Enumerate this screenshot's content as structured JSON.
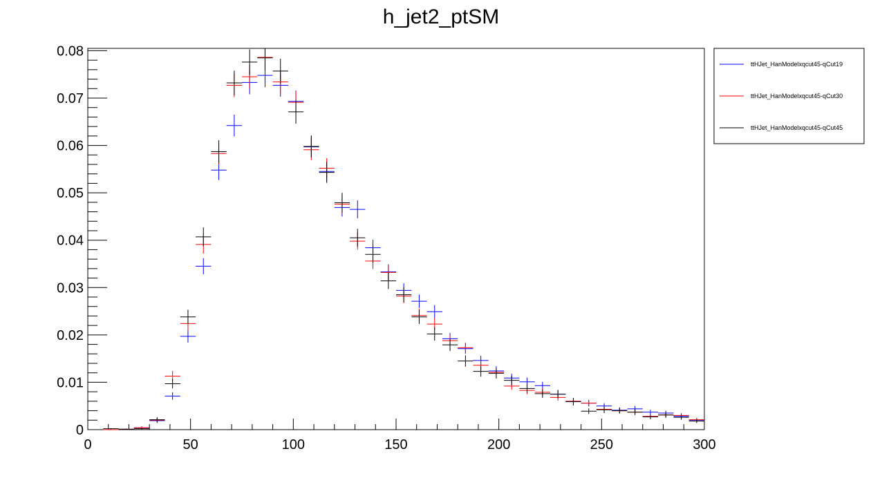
{
  "chart_data": {
    "type": "scatter",
    "title": "h_jet2_ptSM",
    "xlabel": "",
    "ylabel": "",
    "xlim": [
      0,
      300
    ],
    "ylim": [
      0,
      0.0805
    ],
    "x_ticks": [
      "0",
      "50",
      "100",
      "150",
      "200",
      "250",
      "300"
    ],
    "y_ticks": [
      "0",
      "0.01",
      "0.02",
      "0.03",
      "0.04",
      "0.05",
      "0.06",
      "0.07",
      "0.08"
    ],
    "legend_position": "top-right, outside plot",
    "bin_width": 7.5,
    "x": [
      11.25,
      18.75,
      26.25,
      33.75,
      41.25,
      48.75,
      56.25,
      63.75,
      71.25,
      78.75,
      86.25,
      93.75,
      101.25,
      108.75,
      116.25,
      123.75,
      131.25,
      138.75,
      146.25,
      153.75,
      161.25,
      168.75,
      176.25,
      183.75,
      191.25,
      198.75,
      206.25,
      213.75,
      221.25,
      228.75,
      236.25,
      243.75,
      251.25,
      258.75,
      266.25,
      273.75,
      281.25,
      288.75,
      296.25
    ],
    "series": [
      {
        "name": "ttHJet_HanModelxqcut45-qCut19",
        "color": "#0000ff",
        "values": [
          0.0,
          0.0001,
          0.0004,
          0.0019,
          0.0071,
          0.0197,
          0.0345,
          0.0548,
          0.0642,
          0.0733,
          0.0748,
          0.0727,
          0.0693,
          0.0597,
          0.0545,
          0.0469,
          0.0465,
          0.0384,
          0.0333,
          0.0294,
          0.0271,
          0.0249,
          0.0192,
          0.0171,
          0.0146,
          0.0124,
          0.0109,
          0.0101,
          0.0093,
          0.0075,
          0.006,
          0.0056,
          0.005,
          0.0041,
          0.0044,
          0.0037,
          0.0035,
          0.0028,
          0.002
        ],
        "errors": [
          0.0,
          0.0001,
          0.0003,
          0.0005,
          0.0008,
          0.0013,
          0.0017,
          0.0021,
          0.0023,
          0.0025,
          0.0025,
          0.0024,
          0.0023,
          0.0022,
          0.0021,
          0.0019,
          0.0019,
          0.0017,
          0.0016,
          0.0015,
          0.0014,
          0.0014,
          0.0012,
          0.0011,
          0.001,
          0.001,
          0.0009,
          0.0009,
          0.0008,
          0.0008,
          0.0007,
          0.0007,
          0.0006,
          0.0006,
          0.0006,
          0.0005,
          0.0005,
          0.0005,
          0.0004
        ]
      },
      {
        "name": "ttHJet_HanModelxqcut45-qCut30",
        "color": "#ff0000",
        "values": [
          0.0,
          0.0001,
          0.0004,
          0.002,
          0.0113,
          0.0224,
          0.0391,
          0.0583,
          0.0727,
          0.0745,
          0.0786,
          0.0734,
          0.0691,
          0.0591,
          0.0552,
          0.0476,
          0.0398,
          0.0356,
          0.0332,
          0.0282,
          0.0241,
          0.0223,
          0.0188,
          0.0173,
          0.0136,
          0.0121,
          0.0092,
          0.0083,
          0.0079,
          0.0068,
          0.006,
          0.0056,
          0.0043,
          0.004,
          0.0037,
          0.0028,
          0.0031,
          0.003,
          0.0021
        ],
        "errors": [
          0.0,
          0.0001,
          0.0003,
          0.0005,
          0.0011,
          0.0015,
          0.0019,
          0.0023,
          0.0025,
          0.0025,
          0.0026,
          0.0025,
          0.0024,
          0.0022,
          0.0021,
          0.002,
          0.0018,
          0.0017,
          0.0016,
          0.0015,
          0.0014,
          0.0013,
          0.0012,
          0.0011,
          0.001,
          0.0009,
          0.0008,
          0.0008,
          0.0008,
          0.0007,
          0.0007,
          0.0006,
          0.0006,
          0.0005,
          0.0005,
          0.0004,
          0.0005,
          0.0005,
          0.0004
        ]
      },
      {
        "name": "ttHJet_HanModelxqcut45-qCut45",
        "color": "#000000",
        "values": [
          0.0002,
          0.0001,
          0.0002,
          0.0021,
          0.0097,
          0.0238,
          0.0407,
          0.0587,
          0.0732,
          0.0776,
          0.0785,
          0.0757,
          0.0671,
          0.0598,
          0.0543,
          0.0479,
          0.0405,
          0.037,
          0.0314,
          0.0285,
          0.0238,
          0.0202,
          0.0179,
          0.0145,
          0.0123,
          0.0119,
          0.0104,
          0.0087,
          0.0076,
          0.0075,
          0.0059,
          0.0039,
          0.0042,
          0.004,
          0.0037,
          0.0027,
          0.0031,
          0.0026,
          0.0018
        ],
        "errors": [
          0.0001,
          0.0001,
          0.0001,
          0.0005,
          0.001,
          0.0015,
          0.002,
          0.0024,
          0.0026,
          0.0027,
          0.0027,
          0.0026,
          0.0025,
          0.0023,
          0.0022,
          0.0021,
          0.0019,
          0.0018,
          0.0017,
          0.0016,
          0.0015,
          0.0014,
          0.0013,
          0.0012,
          0.0011,
          0.0011,
          0.001,
          0.0009,
          0.0009,
          0.0009,
          0.0008,
          0.0006,
          0.0007,
          0.0006,
          0.0006,
          0.0005,
          0.0006,
          0.0005,
          0.0004
        ]
      }
    ]
  }
}
